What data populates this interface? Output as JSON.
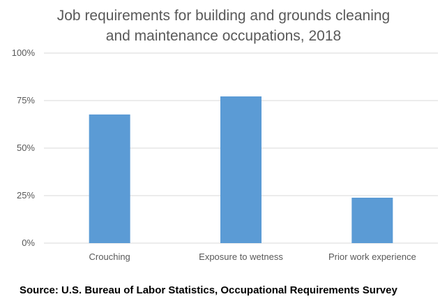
{
  "chart_data": {
    "type": "bar",
    "title_lines": [
      "Job requirements for building and grounds cleaning",
      "and maintenance occupations, 2018"
    ],
    "categories": [
      "Crouching",
      "Exposure to wetness",
      "Prior work experience"
    ],
    "values": [
      67.7,
      77.2,
      23.9
    ],
    "ylim": [
      0,
      100
    ],
    "yticks": [
      0,
      25,
      50,
      75,
      100
    ],
    "ytick_labels": [
      "0%",
      "25%",
      "50%",
      "75%",
      "100%"
    ],
    "grid": true,
    "bar_color": "#5B9BD5",
    "grid_color": "#D9D9D9",
    "source": "Source: U.S. Bureau of Labor Statistics, Occupational Requirements Survey"
  }
}
